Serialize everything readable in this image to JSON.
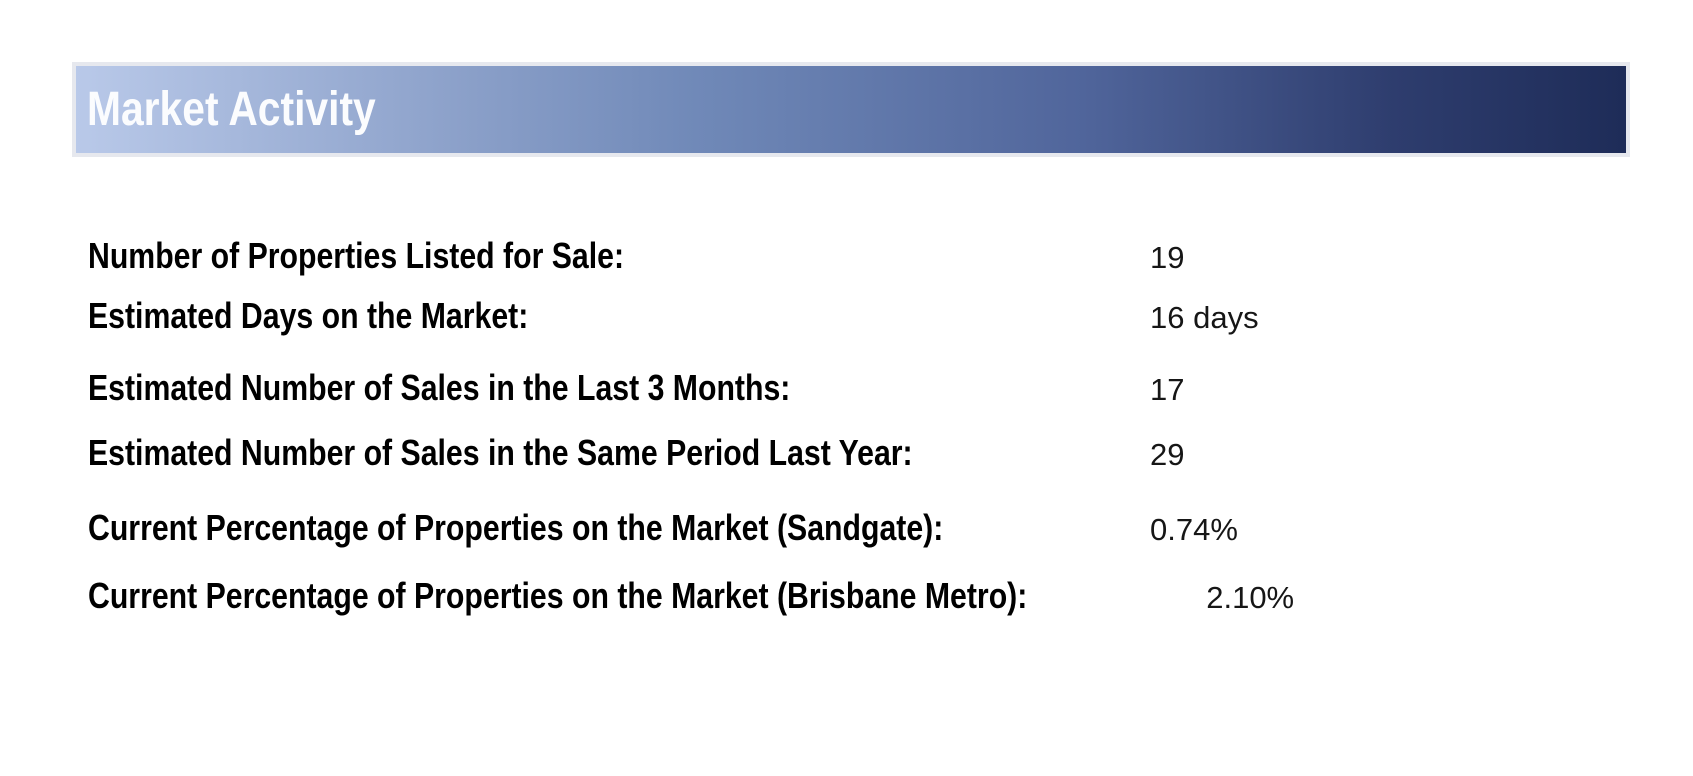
{
  "header": {
    "title": "Market Activity",
    "text_color": "#fbfcfe",
    "gradient_start": "#b9c9e9",
    "gradient_mid": "#50659b",
    "gradient_end": "#1e2c58",
    "border_color": "#e6e8ee"
  },
  "stats": {
    "rows": [
      {
        "label": "Number of Properties Listed for Sale:",
        "value": "19"
      },
      {
        "label": "Estimated Days on the Market:",
        "value": "16 days"
      },
      {
        "label": "Estimated Number of Sales in the Last 3 Months:",
        "value": "17"
      },
      {
        "label": "Estimated Number of Sales in the Same Period Last Year:",
        "value": "29"
      },
      {
        "label": "Current Percentage of Properties on the Market (Sandgate):",
        "value": "0.74%"
      },
      {
        "label": "Current Percentage of Properties on the Market (Brisbane Metro):",
        "value": "2.10%"
      }
    ]
  }
}
